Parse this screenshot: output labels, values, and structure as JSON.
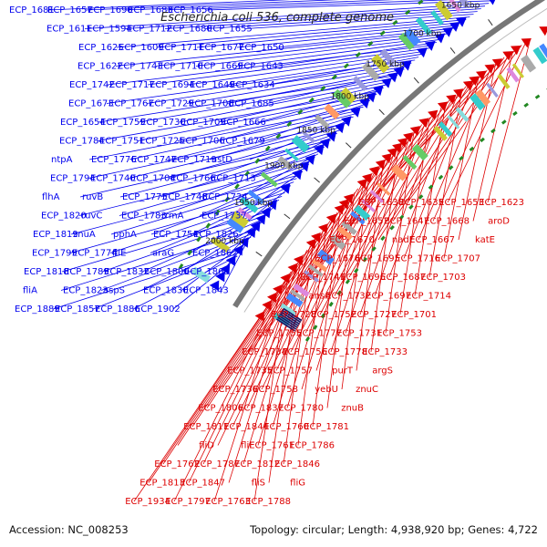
{
  "title": "Escherichia coli 536, complete genome",
  "accession": "Accession: NC_008253",
  "footer_info": "Topology: circular; Length: 4,938,920 bp; Genes: 4,722",
  "colors": {
    "forward": "#0000ee",
    "reverse": "#dd0000",
    "backbone": "#777777",
    "gc_skew": "#228822"
  },
  "scale_ticks": [
    "1650 kbp",
    "1700 kbp",
    "1750 kbp",
    "1800 kbp",
    "1850 kbp",
    "1900 kbp",
    "1950 kbp",
    "2000 kbp"
  ],
  "forward_labels": [
    "ECP_1681",
    "ECP_1657",
    "ECP_1690",
    "ECP_1683",
    "ECP_1656",
    "ECP_1611",
    "ECP_1594",
    "ECP_1712",
    "ECP_1680",
    "ECP_1655",
    "ECP_1625",
    "ECP_1609",
    "ECP_1711",
    "ECP_1677",
    "ECP_1650",
    "ECP_1622",
    "ECP_1743",
    "ECP_1710",
    "ECP_1669",
    "ECP_1643",
    "ECP_1742",
    "ECP_1717",
    "ECP_1694",
    "ECP_1649",
    "ECP_1634",
    "ECP_1673",
    "ECP_1767",
    "ECP_1729",
    "ECP_1708",
    "ECP_1685",
    "ECP_1654",
    "ECP_1759",
    "ECP_1730",
    "ECP_1709",
    "ECP_1666",
    "ECP_1784",
    "ECP_1751",
    "ECP_1725",
    "ECP_1706",
    "ECP_1679",
    "ntpA",
    "ECP_1776",
    "ECP_1747",
    "ECP_1719",
    "astD",
    "ECP_1794",
    "ECP_1740",
    "ECP_1704",
    "ECP_1766",
    "ECP_1713",
    "flhA",
    "ruvB",
    "ECP_1775",
    "ECP_1748",
    "ECP_1724",
    "ECP_1820",
    "ruvC",
    "ECP_1783",
    "rrmA",
    "ECP_1737",
    "ECP_1819",
    "znuA",
    "pphA",
    "ECP_1754",
    "ECP_1826",
    "ECP_1799",
    "ECP_1774",
    "fliE",
    "araG",
    "ECP_1862",
    "ECP_1818",
    "ECP_1789",
    "ECP_1832",
    "ECP_1800",
    "ECP_1868",
    "fliA",
    "ECP_1823",
    "aspS",
    "ECP_1830",
    "ECP_1843",
    "ECP_1889",
    "ECP_1857",
    "ECP_1886",
    "ECP_1902"
  ],
  "reverse_labels": [
    "ECP_1623",
    "ECP_1653",
    "ECP_1635",
    "ECP_1638",
    "aroD",
    "ECP_1668",
    "ECP_1647",
    "ECP_1652",
    "katE",
    "ECP_1667",
    "nadE",
    "ECP_1670",
    "ECP_1707",
    "ECP_1716",
    "ECP_1695",
    "ECP_1676",
    "ECP_1703",
    "ECP_1687",
    "ECP_1696",
    "ECP_1741",
    "ECP_1714",
    "ECP_1697",
    "ECP_1732",
    "ansA",
    "ECP_1701",
    "ECP_1727",
    "ECP_1752",
    "ECP_1728",
    "ECP_1753",
    "ECP_1731",
    "ECP_1777",
    "ECP_1755",
    "ECP_1733",
    "ECP_1778",
    "ECP_1756",
    "ECP_1734",
    "argS",
    "purT",
    "ECP_1757",
    "ECP_1735",
    "znuC",
    "yebU",
    "ECP_1758",
    "ECP_1736",
    "znuB",
    "ECP_1780",
    "ECP_1837",
    "ECP_1806",
    "ECP_1781",
    "ECP_1760",
    "ECP_1844",
    "ECP_1811",
    "ECP_1786",
    "ECP_1761",
    "fliF",
    "fliD",
    "ECP_1846",
    "ECP_1812",
    "ECP_1787",
    "ECP_1762",
    "fliG",
    "fliS",
    "ECP_1847",
    "ECP_1813",
    "ECP_1788",
    "ECP_1763",
    "ECP_1797",
    "ECP_1934"
  ]
}
